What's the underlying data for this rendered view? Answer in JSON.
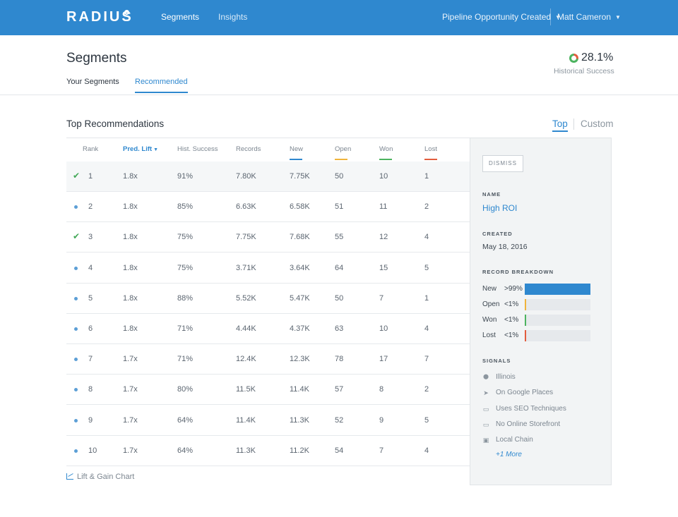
{
  "nav": {
    "logo": "RADIUS",
    "links": [
      "Segments",
      "Insights"
    ],
    "pipeline": "Pipeline Opportunity Created",
    "user": "Matt Cameron"
  },
  "header": {
    "title": "Segments",
    "tabs": [
      "Your Segments",
      "Recommended"
    ],
    "success_value": "28.1%",
    "success_label": "Historical Success"
  },
  "section": {
    "title": "Top Recommendations",
    "toggle_top": "Top",
    "toggle_custom": "Custom"
  },
  "table": {
    "columns": [
      "Rank",
      "Pred. Lift",
      "Hist. Success",
      "Records",
      "New",
      "Open",
      "Won",
      "Lost"
    ],
    "column_colors": {
      "New": "#2f88cf",
      "Open": "#f0b43c",
      "Won": "#4cb35f",
      "Lost": "#e35d3e"
    },
    "rows": [
      {
        "status": "check",
        "rank": "1",
        "lift": "1.8x",
        "hist": "91%",
        "records": "7.80K",
        "new": "7.75K",
        "open": "50",
        "won": "10",
        "lost": "1"
      },
      {
        "status": "dot",
        "rank": "2",
        "lift": "1.8x",
        "hist": "85%",
        "records": "6.63K",
        "new": "6.58K",
        "open": "51",
        "won": "11",
        "lost": "2"
      },
      {
        "status": "check",
        "rank": "3",
        "lift": "1.8x",
        "hist": "75%",
        "records": "7.75K",
        "new": "7.68K",
        "open": "55",
        "won": "12",
        "lost": "4"
      },
      {
        "status": "dot",
        "rank": "4",
        "lift": "1.8x",
        "hist": "75%",
        "records": "3.71K",
        "new": "3.64K",
        "open": "64",
        "won": "15",
        "lost": "5"
      },
      {
        "status": "dot",
        "rank": "5",
        "lift": "1.8x",
        "hist": "88%",
        "records": "5.52K",
        "new": "5.47K",
        "open": "50",
        "won": "7",
        "lost": "1"
      },
      {
        "status": "dot",
        "rank": "6",
        "lift": "1.8x",
        "hist": "71%",
        "records": "4.44K",
        "new": "4.37K",
        "open": "63",
        "won": "10",
        "lost": "4"
      },
      {
        "status": "dot",
        "rank": "7",
        "lift": "1.7x",
        "hist": "71%",
        "records": "12.4K",
        "new": "12.3K",
        "open": "78",
        "won": "17",
        "lost": "7"
      },
      {
        "status": "dot",
        "rank": "8",
        "lift": "1.7x",
        "hist": "80%",
        "records": "11.5K",
        "new": "11.4K",
        "open": "57",
        "won": "8",
        "lost": "2"
      },
      {
        "status": "dot",
        "rank": "9",
        "lift": "1.7x",
        "hist": "64%",
        "records": "11.4K",
        "new": "11.3K",
        "open": "52",
        "won": "9",
        "lost": "5"
      },
      {
        "status": "dot",
        "rank": "10",
        "lift": "1.7x",
        "hist": "64%",
        "records": "11.3K",
        "new": "11.2K",
        "open": "54",
        "won": "7",
        "lost": "4"
      }
    ],
    "footer_link": "Lift & Gain Chart"
  },
  "panel": {
    "dismiss": "DISMISS",
    "name_label": "NAME",
    "name": "High ROI",
    "created_label": "CREATED",
    "created": "May 18, 2016",
    "breakdown_label": "RECORD BREAKDOWN",
    "breakdown": [
      {
        "label": "New",
        "pct": ">99%",
        "fill": 1.0,
        "color": "#2f88cf"
      },
      {
        "label": "Open",
        "pct": "<1%",
        "fill": 0.01,
        "color": "#f0b43c"
      },
      {
        "label": "Won",
        "pct": "<1%",
        "fill": 0.01,
        "color": "#4cb35f"
      },
      {
        "label": "Lost",
        "pct": "<1%",
        "fill": 0.01,
        "color": "#e35d3e"
      }
    ],
    "signals_label": "SIGNALS",
    "signals": [
      {
        "icon": "map-pin-icon",
        "text": "Illinois"
      },
      {
        "icon": "cursor-icon",
        "text": "On Google Places"
      },
      {
        "icon": "laptop-icon",
        "text": "Uses SEO Techniques"
      },
      {
        "icon": "laptop-icon",
        "text": "No Online Storefront"
      },
      {
        "icon": "briefcase-icon",
        "text": "Local Chain"
      }
    ],
    "more": "+1 More"
  }
}
